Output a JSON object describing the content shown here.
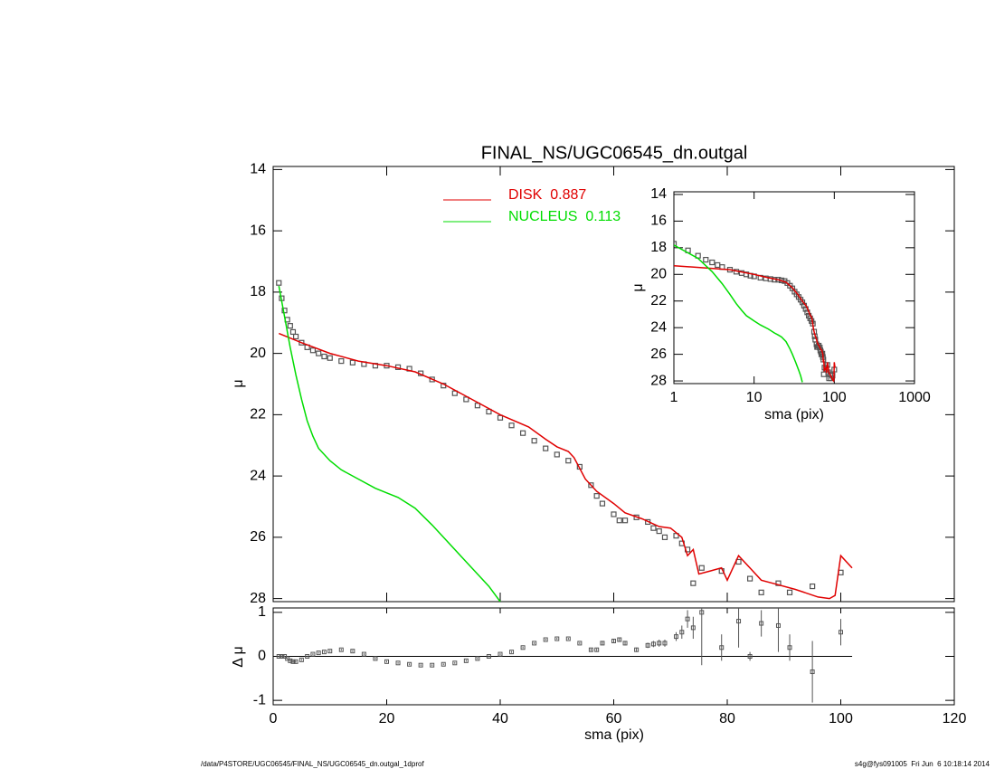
{
  "chart_data": [
    {
      "type": "line",
      "title": "FINAL_NS/UGC06545_dn.outgal",
      "y_label": "μ",
      "xlim": [
        0,
        120
      ],
      "ylim": [
        28.1,
        13.9
      ],
      "yticks": [
        14,
        16,
        18,
        20,
        22,
        24,
        26,
        28
      ],
      "points": {
        "color": "#555555",
        "x": [
          1,
          1.5,
          2,
          2.5,
          3,
          3.5,
          4,
          5,
          6,
          7,
          8,
          9,
          10,
          12,
          14,
          16,
          18,
          20,
          22,
          24,
          26,
          28,
          30,
          32,
          34,
          36,
          38,
          40,
          42,
          44,
          46,
          48,
          50,
          52,
          54,
          56,
          57,
          58,
          60,
          61,
          62,
          64,
          66,
          67,
          68,
          69,
          71,
          72,
          73,
          74,
          75.5,
          79,
          82,
          84,
          86,
          89,
          91,
          95,
          100
        ],
        "values": [
          17.7,
          18.2,
          18.6,
          18.9,
          19.1,
          19.3,
          19.45,
          19.65,
          19.8,
          19.9,
          20.0,
          20.1,
          20.15,
          20.25,
          20.3,
          20.35,
          20.4,
          20.4,
          20.45,
          20.5,
          20.65,
          20.85,
          21.05,
          21.3,
          21.5,
          21.7,
          21.9,
          22.1,
          22.35,
          22.6,
          22.85,
          23.1,
          23.3,
          23.5,
          23.7,
          24.3,
          24.65,
          24.9,
          25.25,
          25.45,
          25.45,
          25.35,
          25.5,
          25.7,
          25.8,
          26.0,
          25.95,
          26.2,
          26.4,
          27.5,
          27.0,
          27.1,
          26.8,
          27.35,
          27.8,
          27.5,
          27.8,
          27.6,
          27.15
        ]
      },
      "series": [
        {
          "name": "DISK  0.887",
          "color": "#e00000",
          "x": [
            1,
            5,
            10,
            15,
            20,
            25,
            30,
            35,
            40,
            45,
            48,
            50,
            52,
            53,
            55,
            57,
            60,
            62,
            65,
            68,
            70,
            72,
            73,
            74,
            75,
            77,
            79,
            80,
            82,
            84,
            86,
            88,
            92,
            96,
            98,
            99,
            100,
            102
          ],
          "values": [
            19.35,
            19.65,
            20.0,
            20.25,
            20.4,
            20.6,
            21.0,
            21.5,
            22.0,
            22.4,
            22.8,
            23.05,
            23.2,
            23.4,
            24.1,
            24.5,
            24.9,
            25.2,
            25.4,
            25.65,
            25.7,
            26.0,
            26.6,
            26.4,
            27.2,
            27.1,
            27.0,
            27.4,
            26.6,
            27.0,
            27.4,
            27.5,
            27.7,
            27.95,
            28.0,
            27.9,
            26.6,
            27.0
          ]
        },
        {
          "name": "NUCLEUS  0.113",
          "color": "#00dd00",
          "x": [
            1,
            2,
            3,
            4,
            5,
            6,
            7,
            8,
            10,
            12,
            15,
            18,
            20,
            22,
            25,
            28,
            30,
            33,
            36,
            38,
            40
          ],
          "values": [
            17.8,
            18.8,
            19.8,
            20.7,
            21.5,
            22.2,
            22.7,
            23.1,
            23.5,
            23.8,
            24.1,
            24.4,
            24.55,
            24.7,
            25.05,
            25.6,
            26.0,
            26.6,
            27.2,
            27.6,
            28.1
          ]
        }
      ]
    },
    {
      "type": "residual",
      "x_label": "sma (pix)",
      "y_label": "Δ μ",
      "xlim": [
        0,
        120
      ],
      "ylim": [
        -1.1,
        1.1
      ],
      "xticks": [
        0,
        20,
        40,
        60,
        80,
        100,
        120
      ],
      "yticks": [
        -1,
        0,
        1
      ],
      "values": [
        0,
        0,
        0,
        -0.05,
        -0.1,
        -0.12,
        -0.12,
        -0.08,
        0,
        0.05,
        0.08,
        0.1,
        0.12,
        0.15,
        0.12,
        0.05,
        -0.05,
        -0.12,
        -0.15,
        -0.18,
        -0.2,
        -0.2,
        -0.18,
        -0.15,
        -0.1,
        -0.05,
        0,
        0.05,
        0.1,
        0.2,
        0.3,
        0.38,
        0.4,
        0.4,
        0.3,
        0.15,
        0.15,
        0.3,
        0.35,
        0.38,
        0.3,
        0.15,
        0.25,
        0.28,
        0.3,
        0.3,
        0.45,
        0.55,
        0.85,
        0.65,
        1.0,
        0.2,
        0.8,
        0,
        0.75,
        0.7,
        0.2,
        -0.35,
        0.55
      ],
      "errors": [
        0.02,
        0.02,
        0.02,
        0.02,
        0.02,
        0.02,
        0.02,
        0.02,
        0.02,
        0.02,
        0.02,
        0.02,
        0.02,
        0.02,
        0.02,
        0.02,
        0.02,
        0.02,
        0.02,
        0.02,
        0.02,
        0.02,
        0.02,
        0.02,
        0.02,
        0.02,
        0.02,
        0.02,
        0.02,
        0.02,
        0.02,
        0.02,
        0.02,
        0.02,
        0.02,
        0.03,
        0.03,
        0.04,
        0.04,
        0.05,
        0.05,
        0.05,
        0.06,
        0.07,
        0.08,
        0.08,
        0.1,
        0.15,
        0.2,
        0.25,
        1.2,
        0.3,
        0.6,
        0.1,
        0.3,
        0.6,
        0.3,
        0.7,
        0.3
      ]
    },
    {
      "type": "inset",
      "x_label": "sma (pix)",
      "y_label": "μ",
      "xscale": "log",
      "xlim": [
        1,
        1000
      ],
      "ylim": [
        28.2,
        13.8
      ],
      "xticks": [
        1,
        10,
        100,
        1000
      ],
      "yticks": [
        14,
        16,
        18,
        20,
        22,
        24,
        26,
        28
      ]
    }
  ],
  "footer": {
    "left": "/data/P4STORE/UGC06545/FINAL_NS/UGC06545_dn.outgal_1dprof",
    "right": "s4g@fys091005  Fri Jun  6 10:18:14 2014"
  }
}
